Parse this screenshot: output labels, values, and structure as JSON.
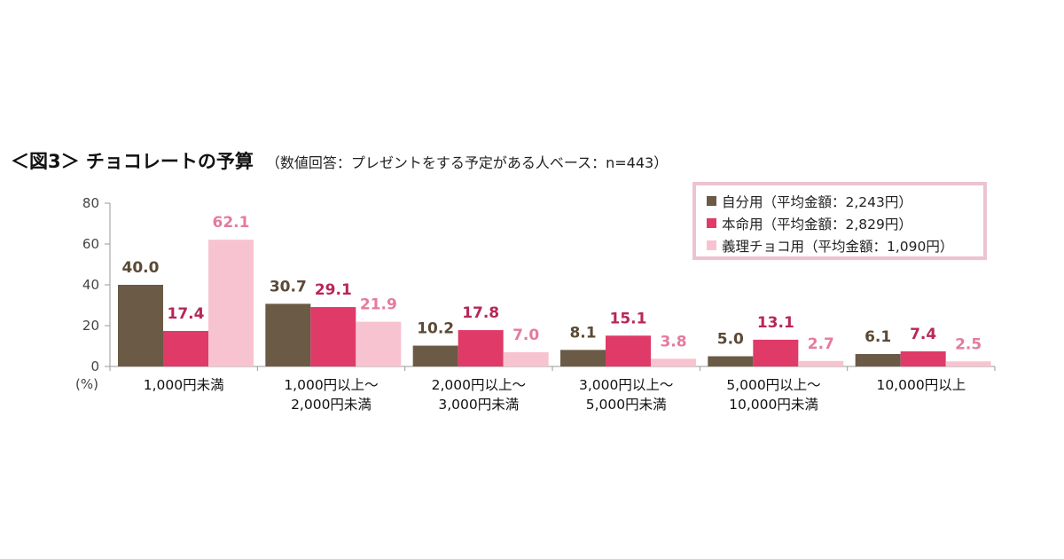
{
  "header": {
    "title": "＜図3＞ チョコレートの予算",
    "subtitle": "（数値回答：プレゼントをする予定がある人ベース：n=443）"
  },
  "chart_data": {
    "type": "bar",
    "title": "＜図3＞ チョコレートの予算",
    "subtitle": "（数値回答：プレゼントをする予定がある人ベース：n=443）",
    "ylabel": "(%)",
    "ylim": [
      0,
      80
    ],
    "yticks": [
      0,
      20,
      40,
      60,
      80
    ],
    "grid": false,
    "legend_position": "top-right",
    "categories": [
      [
        "1,000円未満"
      ],
      [
        "1,000円以上～",
        "2,000円未満"
      ],
      [
        "2,000円以上～",
        "3,000円未満"
      ],
      [
        "3,000円以上～",
        "5,000円未満"
      ],
      [
        "5,000円以上～",
        "10,000円未満"
      ],
      [
        "10,000円以上"
      ]
    ],
    "series": [
      {
        "name": "自分用（平均金額：2,243円）",
        "color": "#6b5a45",
        "label_color": "#5a4a35",
        "values": [
          40.0,
          30.7,
          10.2,
          8.1,
          5.0,
          6.1
        ]
      },
      {
        "name": "本命用（平均金額：2,829円）",
        "color": "#e03a68",
        "label_color": "#b8265a",
        "values": [
          17.4,
          29.1,
          17.8,
          15.1,
          13.1,
          7.4
        ]
      },
      {
        "name": "義理チョコ用（平均金額：1,090円）",
        "color": "#f8c3d1",
        "label_color": "#e67a9e",
        "values": [
          62.1,
          21.9,
          7.0,
          3.8,
          2.7,
          2.5
        ]
      }
    ]
  }
}
